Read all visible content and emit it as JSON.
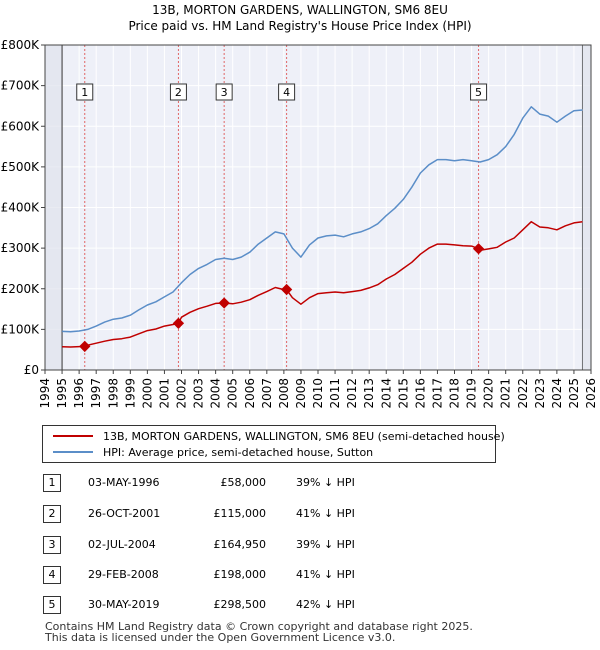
{
  "titles": {
    "line1": "13B, MORTON GARDENS, WALLINGTON, SM6 8EU",
    "line2": "Price paid vs. HM Land Registry's House Price Index (HPI)"
  },
  "chart_data": {
    "type": "line",
    "title": "13B, MORTON GARDENS, WALLINGTON, SM6 8EU — Price paid vs. HM Land Registry's House Price Index (HPI)",
    "xlim": [
      1994,
      2026
    ],
    "ylim": [
      0,
      800000
    ],
    "x_ticks": [
      "1994",
      "1995",
      "1996",
      "1997",
      "1998",
      "1999",
      "2000",
      "2001",
      "2002",
      "2003",
      "2004",
      "2005",
      "2006",
      "2007",
      "2008",
      "2009",
      "2010",
      "2011",
      "2012",
      "2013",
      "2014",
      "2015",
      "2016",
      "2017",
      "2018",
      "2019",
      "2020",
      "2021",
      "2022",
      "2023",
      "2024",
      "2025",
      "2026"
    ],
    "y_ticks": [
      {
        "value": 0,
        "label": "£0"
      },
      {
        "value": 100000,
        "label": "£100K"
      },
      {
        "value": 200000,
        "label": "£200K"
      },
      {
        "value": 300000,
        "label": "£300K"
      },
      {
        "value": 400000,
        "label": "£400K"
      },
      {
        "value": 500000,
        "label": "£500K"
      },
      {
        "value": 600000,
        "label": "£600K"
      },
      {
        "value": 700000,
        "label": "£700K"
      },
      {
        "value": 800000,
        "label": "£800K"
      }
    ],
    "grid": true,
    "data_start": 1995.0,
    "data_end": 2025.5,
    "hpi_color": "#5b8ec8",
    "price_color": "#c00000",
    "series": [
      {
        "name": "HPI: Average price, semi-detached house, Sutton",
        "x": [
          1995.0,
          1995.5,
          1996.0,
          1996.5,
          1997.0,
          1997.5,
          1998.0,
          1998.5,
          1999.0,
          1999.5,
          2000.0,
          2000.5,
          2001.0,
          2001.5,
          2002.0,
          2002.5,
          2003.0,
          2003.5,
          2004.0,
          2004.5,
          2005.0,
          2005.5,
          2006.0,
          2006.5,
          2007.0,
          2007.5,
          2008.0,
          2008.5,
          2009.0,
          2009.5,
          2010.0,
          2010.5,
          2011.0,
          2011.5,
          2012.0,
          2012.5,
          2013.0,
          2013.5,
          2014.0,
          2014.5,
          2015.0,
          2015.5,
          2016.0,
          2016.5,
          2017.0,
          2017.5,
          2018.0,
          2018.5,
          2019.0,
          2019.5,
          2020.0,
          2020.5,
          2021.0,
          2021.5,
          2022.0,
          2022.5,
          2023.0,
          2023.5,
          2024.0,
          2024.5,
          2025.0,
          2025.5
        ],
        "y": [
          95000,
          94000,
          96000,
          100000,
          108000,
          118000,
          125000,
          128000,
          135000,
          148000,
          160000,
          168000,
          180000,
          192000,
          215000,
          235000,
          250000,
          260000,
          272000,
          275000,
          272000,
          278000,
          290000,
          310000,
          325000,
          340000,
          335000,
          300000,
          278000,
          308000,
          325000,
          330000,
          332000,
          328000,
          335000,
          340000,
          348000,
          360000,
          380000,
          398000,
          420000,
          450000,
          485000,
          505000,
          518000,
          518000,
          515000,
          518000,
          515000,
          512000,
          518000,
          530000,
          550000,
          580000,
          620000,
          648000,
          630000,
          625000,
          610000,
          625000,
          638000,
          640000
        ]
      },
      {
        "name": "13B, MORTON GARDENS, WALLINGTON, SM6 8EU (semi-detached house)",
        "x": [
          1995.0,
          1995.5,
          1996.0,
          1996.33,
          1996.5,
          1997.0,
          1997.5,
          1998.0,
          1998.5,
          1999.0,
          1999.5,
          2000.0,
          2000.5,
          2001.0,
          2001.5,
          2001.82,
          2002.0,
          2002.5,
          2003.0,
          2003.5,
          2004.0,
          2004.5,
          2005.0,
          2005.5,
          2006.0,
          2006.5,
          2007.0,
          2007.5,
          2008.0,
          2008.16,
          2008.5,
          2009.0,
          2009.5,
          2010.0,
          2010.5,
          2011.0,
          2011.5,
          2012.0,
          2012.5,
          2013.0,
          2013.5,
          2014.0,
          2014.5,
          2015.0,
          2015.5,
          2016.0,
          2016.5,
          2017.0,
          2017.5,
          2018.0,
          2018.5,
          2019.0,
          2019.41,
          2019.5,
          2020.0,
          2020.5,
          2021.0,
          2021.5,
          2022.0,
          2022.5,
          2023.0,
          2023.5,
          2024.0,
          2024.5,
          2025.0,
          2025.5
        ],
        "y": [
          57000,
          56500,
          57500,
          58000,
          61000,
          66000,
          71000,
          75000,
          77000,
          81000,
          89000,
          97000,
          101000,
          108000,
          112000,
          115000,
          130000,
          142000,
          151000,
          157000,
          164000,
          164950,
          163000,
          167000,
          173000,
          184000,
          193000,
          203000,
          198000,
          198000,
          178000,
          162000,
          178000,
          188000,
          190000,
          192000,
          190000,
          193000,
          196000,
          202000,
          210000,
          224000,
          235000,
          250000,
          265000,
          285000,
          300000,
          310000,
          310000,
          308000,
          306000,
          305000,
          298500,
          295000,
          298000,
          302000,
          315000,
          325000,
          345000,
          365000,
          352000,
          350000,
          345000,
          355000,
          362000,
          365000
        ]
      }
    ],
    "sales": [
      {
        "n": "1",
        "x": 1996.33,
        "y": 58000
      },
      {
        "n": "2",
        "x": 2001.82,
        "y": 115000
      },
      {
        "n": "3",
        "x": 2004.5,
        "y": 164950
      },
      {
        "n": "4",
        "x": 2008.16,
        "y": 198000
      },
      {
        "n": "5",
        "x": 2019.41,
        "y": 298500
      }
    ]
  },
  "legend": {
    "price_label": "13B, MORTON GARDENS, WALLINGTON, SM6 8EU (semi-detached house)",
    "hpi_label": "HPI: Average price, semi-detached house, Sutton"
  },
  "transactions": [
    {
      "n": "1",
      "date": "03-MAY-1996",
      "price": "£58,000",
      "hpi": "39% ↓ HPI"
    },
    {
      "n": "2",
      "date": "26-OCT-2001",
      "price": "£115,000",
      "hpi": "41% ↓ HPI"
    },
    {
      "n": "3",
      "date": "02-JUL-2004",
      "price": "£164,950",
      "hpi": "39% ↓ HPI"
    },
    {
      "n": "4",
      "date": "29-FEB-2008",
      "price": "£198,000",
      "hpi": "41% ↓ HPI"
    },
    {
      "n": "5",
      "date": "30-MAY-2019",
      "price": "£298,500",
      "hpi": "42% ↓ HPI"
    }
  ],
  "footer": {
    "line1": "Contains HM Land Registry data © Crown copyright and database right 2025.",
    "line2": "This data is licensed under the Open Government Licence v3.0."
  }
}
